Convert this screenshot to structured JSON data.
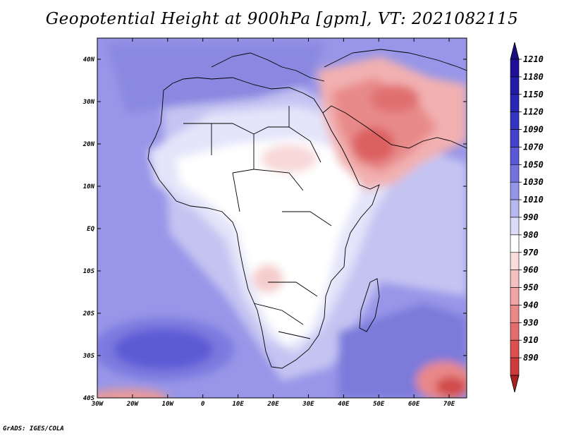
{
  "title": "Geopotential Height at 900hPa [gpm], VT: 2021082115",
  "footer": "GrADS: IGES/COLA",
  "map": {
    "lon_range": [
      -30,
      75
    ],
    "lat_range": [
      -40,
      45
    ],
    "lat_ticks": [
      {
        "value": 40,
        "label": "40N"
      },
      {
        "value": 30,
        "label": "30N"
      },
      {
        "value": 20,
        "label": "20N"
      },
      {
        "value": 10,
        "label": "10N"
      },
      {
        "value": 0,
        "label": "EQ"
      },
      {
        "value": -10,
        "label": "10S"
      },
      {
        "value": -20,
        "label": "20S"
      },
      {
        "value": -30,
        "label": "30S"
      },
      {
        "value": -40,
        "label": "40S"
      }
    ],
    "lon_ticks": [
      {
        "value": -30,
        "label": "30W"
      },
      {
        "value": -20,
        "label": "20W"
      },
      {
        "value": -10,
        "label": "10W"
      },
      {
        "value": 0,
        "label": "0"
      },
      {
        "value": 10,
        "label": "10E"
      },
      {
        "value": 20,
        "label": "20E"
      },
      {
        "value": 30,
        "label": "30E"
      },
      {
        "value": 40,
        "label": "40E"
      },
      {
        "value": 50,
        "label": "50E"
      },
      {
        "value": 60,
        "label": "60E"
      },
      {
        "value": 70,
        "label": "70E"
      }
    ]
  },
  "colorbar": {
    "levels": [
      {
        "label": "1210",
        "color": "#1e0f96"
      },
      {
        "label": "1180",
        "color": "#231aa6"
      },
      {
        "label": "1150",
        "color": "#2a26b4"
      },
      {
        "label": "1120",
        "color": "#3534c2"
      },
      {
        "label": "1090",
        "color": "#4442ca"
      },
      {
        "label": "1070",
        "color": "#5a58d6"
      },
      {
        "label": "1050",
        "color": "#7472de"
      },
      {
        "label": "1030",
        "color": "#9494e8"
      },
      {
        "label": "1010",
        "color": "#b8b8f0"
      },
      {
        "label": "990",
        "color": "#dcdcf8"
      },
      {
        "label": "980",
        "color": "#ffffff"
      },
      {
        "label": "970",
        "color": "#fadcdc"
      },
      {
        "label": "960",
        "color": "#f5c0c0"
      },
      {
        "label": "950",
        "color": "#f0a4a4"
      },
      {
        "label": "940",
        "color": "#ea8888"
      },
      {
        "label": "930",
        "color": "#e46c6c"
      },
      {
        "label": "910",
        "color": "#dc5050"
      },
      {
        "label": "890",
        "color": "#cc3a3a"
      }
    ],
    "top_color": "#180c80",
    "bottom_color": "#a82020"
  }
}
